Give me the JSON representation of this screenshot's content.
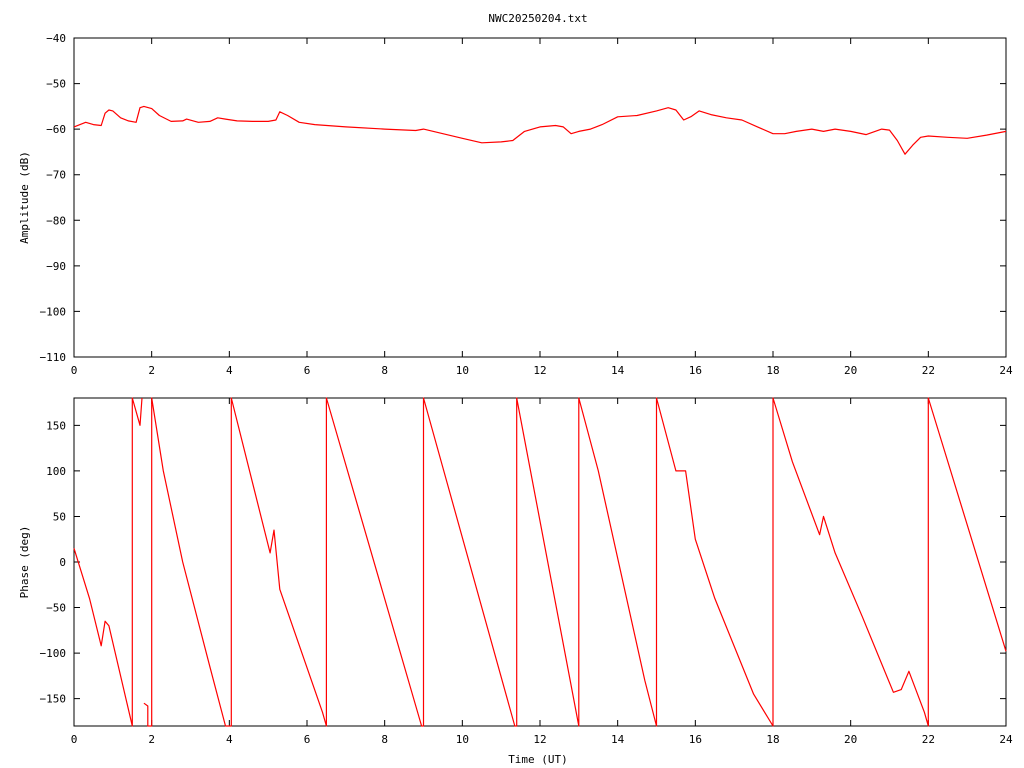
{
  "title": "NWC20250204.txt",
  "line_color": "#ff0000",
  "chart_data": [
    {
      "type": "line",
      "name": "amplitude",
      "title": "NWC20250204.txt",
      "xlabel": "",
      "ylabel": "Amplitude (dB)",
      "xlim": [
        0,
        24
      ],
      "ylim": [
        -110,
        -40
      ],
      "xticks": [
        0,
        2,
        4,
        6,
        8,
        10,
        12,
        14,
        16,
        18,
        20,
        22,
        24
      ],
      "yticks": [
        -110,
        -100,
        -90,
        -80,
        -70,
        -60,
        -50,
        -40
      ],
      "grid": false,
      "series": [
        {
          "x": [
            0,
            0.3,
            0.5,
            0.7,
            0.8,
            0.9,
            1.0,
            1.2,
            1.4,
            1.6,
            1.7,
            1.8,
            2.0,
            2.2,
            2.5,
            2.8,
            2.9,
            3.2,
            3.5,
            3.7,
            3.9,
            4.2,
            4.6,
            5.0,
            5.2,
            5.3,
            5.5,
            5.8,
            6.2,
            7.0,
            8.0,
            8.8,
            9.0,
            9.5,
            10.0,
            10.5,
            11.0,
            11.3,
            11.6,
            12.0,
            12.4,
            12.6,
            12.8,
            13.0,
            13.3,
            13.6,
            14.0,
            14.5,
            15.0,
            15.3,
            15.5,
            15.7,
            15.9,
            16.1,
            16.4,
            16.8,
            17.2,
            17.6,
            18.0,
            18.3,
            18.6,
            19.0,
            19.3,
            19.6,
            20.0,
            20.4,
            20.8,
            21.0,
            21.2,
            21.4,
            21.6,
            21.8,
            22.0,
            22.5,
            23.0,
            23.5,
            24.0
          ],
          "values": [
            -59.5,
            -58.5,
            -59.0,
            -59.2,
            -56.5,
            -55.8,
            -56.0,
            -57.5,
            -58.2,
            -58.5,
            -55.3,
            -55.0,
            -55.5,
            -57.0,
            -58.3,
            -58.2,
            -57.8,
            -58.5,
            -58.3,
            -57.5,
            -57.8,
            -58.2,
            -58.3,
            -58.3,
            -58.0,
            -56.2,
            -57.0,
            -58.5,
            -59.0,
            -59.5,
            -60.0,
            -60.3,
            -60.0,
            -61.0,
            -62.0,
            -63.0,
            -62.8,
            -62.5,
            -60.5,
            -59.5,
            -59.2,
            -59.5,
            -61.0,
            -60.5,
            -60.0,
            -59.0,
            -57.3,
            -57.0,
            -56.0,
            -55.3,
            -55.8,
            -58.0,
            -57.2,
            -56.0,
            -56.8,
            -57.5,
            -58.0,
            -59.5,
            -61.0,
            -61.0,
            -60.5,
            -60.0,
            -60.5,
            -60.0,
            -60.5,
            -61.2,
            -60.0,
            -60.2,
            -62.5,
            -65.5,
            -63.5,
            -61.8,
            -61.5,
            -61.8,
            -62.0,
            -61.3,
            -60.5
          ]
        }
      ]
    },
    {
      "type": "line",
      "name": "phase",
      "title": "",
      "xlabel": "Time (UT)",
      "ylabel": "Phase (deg)",
      "xlim": [
        0,
        24
      ],
      "ylim": [
        -180,
        180
      ],
      "xticks": [
        0,
        2,
        4,
        6,
        8,
        10,
        12,
        14,
        16,
        18,
        20,
        22,
        24
      ],
      "yticks": [
        -150,
        -100,
        -50,
        0,
        50,
        100,
        150
      ],
      "grid": false,
      "series": [
        {
          "x": [
            0,
            0.4,
            0.7,
            0.8,
            0.9,
            1.5,
            1.5,
            1.7,
            1.75,
            1.75,
            1.8,
            1.9,
            1.9,
            2.0,
            2.0,
            2.3,
            2.8,
            3.5,
            3.9,
            4.05,
            4.05,
            5.05,
            5.15,
            5.3,
            6.4,
            6.5,
            6.5,
            8.95,
            9.0,
            9.0,
            11.35,
            11.4,
            11.4,
            13.0,
            13.0,
            13.5,
            14.7,
            15.0,
            15.0,
            15.5,
            15.75,
            16.0,
            16.5,
            17.5,
            18.0,
            18.0,
            18.5,
            19.2,
            19.3,
            19.6,
            20.3,
            21.1,
            21.3,
            21.5,
            21.9,
            22.0,
            22.0,
            24.0
          ],
          "values": [
            15,
            -40,
            -92,
            -65,
            -70,
            -180,
            180,
            150,
            180,
            null,
            -155,
            -158,
            -180,
            -180,
            180,
            100,
            0,
            -115,
            -180,
            -180,
            180,
            10,
            35,
            -30,
            -165,
            -180,
            180,
            -180,
            -180,
            180,
            -180,
            -180,
            180,
            -180,
            180,
            100,
            -130,
            -180,
            180,
            100,
            100,
            25,
            -40,
            -145,
            -180,
            180,
            110,
            30,
            50,
            10,
            -60,
            -143,
            -140,
            -120,
            -165,
            -180,
            180,
            -98
          ]
        }
      ]
    }
  ]
}
